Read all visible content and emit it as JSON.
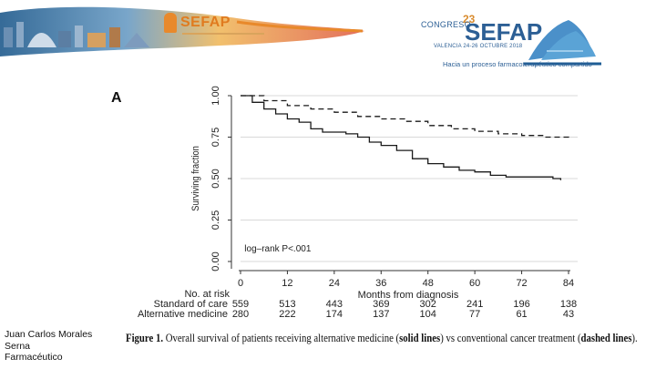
{
  "header": {
    "left_logo_text": "SEFAP",
    "congress_number": "23",
    "congress_label": "CONGRESO",
    "congress_brand": "SEFAP",
    "congress_dates": "VALENCIA 24-26 OCTUBRE 2018",
    "congress_slogan": "Hacia un proceso farmacoterapéutico compartido"
  },
  "panel_label": "A",
  "speaker": {
    "line1": "Juan Carlos Morales",
    "line2": "Serna",
    "line3": "Farmacéutico"
  },
  "caption": {
    "prefix": "Figure 1.",
    "text1": " Overall survival of patients receiving alternative medicine (",
    "solid": "solid lines",
    "text2": ") vs conventional cancer treatment (",
    "dashed": "dashed lines",
    "text3": ")."
  },
  "chart_data": {
    "type": "line",
    "title": "",
    "xlabel": "Months from diagnosis",
    "ylabel": "Surviving fraction",
    "xlim": [
      0,
      84
    ],
    "ylim": [
      0,
      1
    ],
    "xticks": [
      "0",
      "12",
      "24",
      "36",
      "48",
      "60",
      "72",
      "84"
    ],
    "yticks": [
      "0.00",
      "0.25",
      "0.50",
      "0.75",
      "1.00"
    ],
    "grid": "horizontal",
    "annotation": "log–rank P<.001",
    "series": [
      {
        "name": "Standard of care",
        "style": "dashed",
        "x": [
          0,
          6,
          12,
          18,
          24,
          30,
          36,
          42,
          48,
          54,
          60,
          66,
          72,
          78,
          84
        ],
        "y": [
          1.0,
          0.97,
          0.94,
          0.92,
          0.9,
          0.875,
          0.86,
          0.845,
          0.82,
          0.8,
          0.785,
          0.77,
          0.76,
          0.75,
          0.74
        ]
      },
      {
        "name": "Alternative medicine",
        "style": "solid",
        "x": [
          0,
          3,
          6,
          9,
          12,
          15,
          18,
          21,
          24,
          27,
          30,
          33,
          36,
          40,
          44,
          48,
          52,
          56,
          60,
          64,
          68,
          72,
          76,
          80,
          82
        ],
        "y": [
          1.0,
          0.96,
          0.92,
          0.89,
          0.86,
          0.84,
          0.8,
          0.78,
          0.78,
          0.77,
          0.75,
          0.72,
          0.7,
          0.67,
          0.62,
          0.59,
          0.57,
          0.55,
          0.54,
          0.52,
          0.51,
          0.51,
          0.51,
          0.5,
          0.49
        ]
      }
    ],
    "risk_table": {
      "title": "No. at risk",
      "times": [
        "0",
        "12",
        "24",
        "36",
        "48",
        "60",
        "72",
        "84"
      ],
      "rows": [
        {
          "label": "Standard of care",
          "values": [
            "559",
            "513",
            "443",
            "369",
            "302",
            "241",
            "196",
            "138"
          ]
        },
        {
          "label": "Alternative medicine",
          "values": [
            "280",
            "222",
            "174",
            "137",
            "104",
            "77",
            "61",
            "43"
          ]
        }
      ]
    }
  }
}
